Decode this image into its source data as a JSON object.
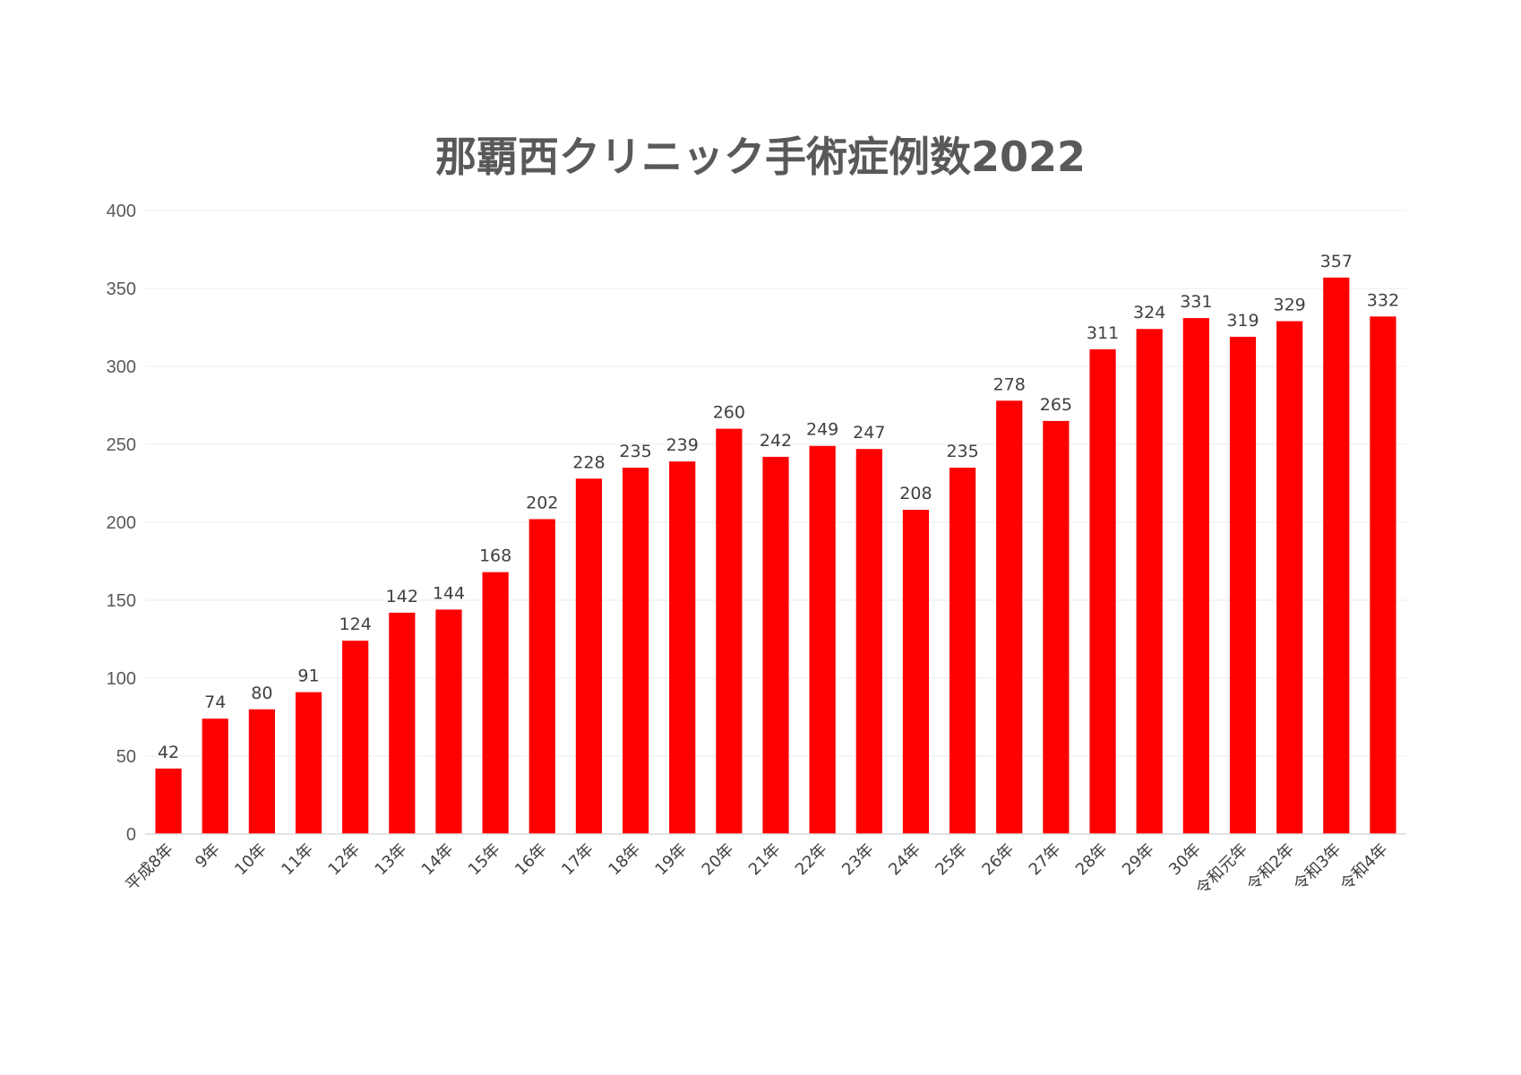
{
  "chart_data": {
    "type": "bar",
    "title": "那覇西クリニック手術症例数2022",
    "xlabel": "",
    "ylabel": "",
    "categories": [
      "平成8年",
      "9年",
      "10年",
      "11年",
      "12年",
      "13年",
      "14年",
      "15年",
      "16年",
      "17年",
      "18年",
      "19年",
      "20年",
      "21年",
      "22年",
      "23年",
      "24年",
      "25年",
      "26年",
      "27年",
      "28年",
      "29年",
      "30年",
      "令和元年",
      "令和2年",
      "令和3年",
      "令和4年"
    ],
    "values": [
      42,
      74,
      80,
      91,
      124,
      142,
      144,
      168,
      202,
      228,
      235,
      239,
      260,
      242,
      249,
      247,
      208,
      235,
      278,
      265,
      311,
      324,
      331,
      319,
      329,
      357,
      332
    ],
    "ylim": [
      0,
      400
    ],
    "yticks": [
      0,
      50,
      100,
      150,
      200,
      250,
      300,
      350,
      400
    ],
    "bar_color": "#ff0000",
    "grid": true,
    "data_labels": true
  }
}
